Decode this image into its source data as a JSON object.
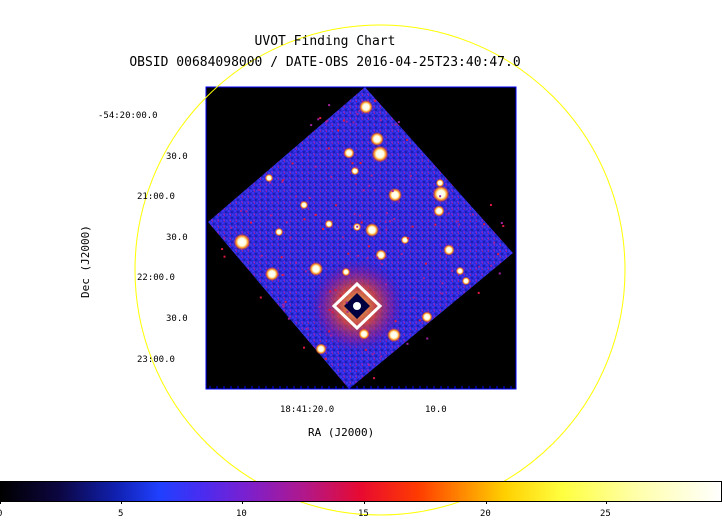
{
  "title": "UVOT Finding Chart",
  "subtitle": "OBSID 00684098000 / DATE-OBS 2016-04-25T23:40:47.0",
  "xlabel": "RA (J2000)",
  "ylabel": "Dec (J2000)",
  "ra_ticks": [
    "18:41:20.0",
    "10.0"
  ],
  "dec_ticks": [
    "-54:20:00.0",
    "30.0",
    "21:00.0",
    "30.0",
    "22:00.0",
    "30.0",
    "23:00.0"
  ],
  "colorbar": {
    "ticks": [
      "0",
      "5",
      "10",
      "15",
      "20",
      "25"
    ],
    "range": [
      0,
      29.5
    ],
    "colormap": "heat (black-blue-purple-red-orange-yellow-white)"
  },
  "colors": {
    "circle": "#ffff00",
    "frame_border": "#0000ff",
    "background": "#000000"
  }
}
